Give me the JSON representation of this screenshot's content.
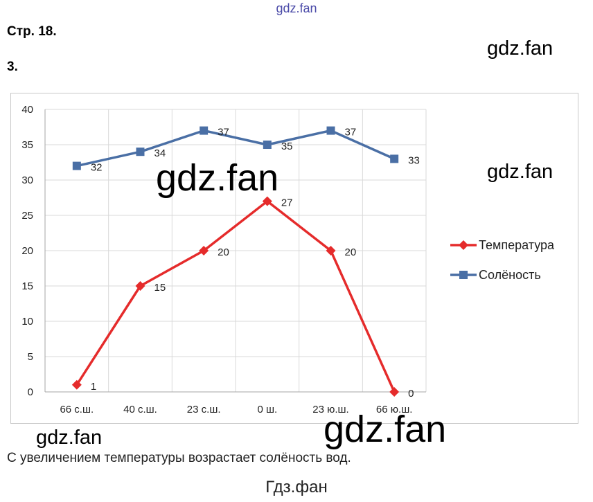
{
  "header": {
    "watermark_top": "gdz.fan",
    "page": "Стр. 18.",
    "task": "3."
  },
  "watermarks": [
    "gdz.fan",
    "gdz.fan",
    "gdz.fan",
    "gdz.fan",
    "gdz.fan"
  ],
  "chart_data": {
    "type": "line",
    "categories": [
      "66 с.ш.",
      "40 с.ш.",
      "23 с.ш.",
      "0 ш.",
      "23 ю.ш.",
      "66 ю.ш."
    ],
    "ylim": [
      0,
      40
    ],
    "yticks": [
      0,
      5,
      10,
      15,
      20,
      25,
      30,
      35,
      40
    ],
    "grid": true,
    "legend": "right",
    "series": [
      {
        "name": "Температура",
        "values": [
          1,
          15,
          20,
          27,
          20,
          0
        ],
        "color": "#e52b2b",
        "marker": "diamond"
      },
      {
        "name": "Солёность",
        "values": [
          32,
          34,
          37,
          35,
          37,
          33
        ],
        "color": "#4a6fa5",
        "marker": "square"
      }
    ]
  },
  "conclusion": "С увеличением температуры возрастает солёность вод.",
  "footer": "Гдз.фан"
}
